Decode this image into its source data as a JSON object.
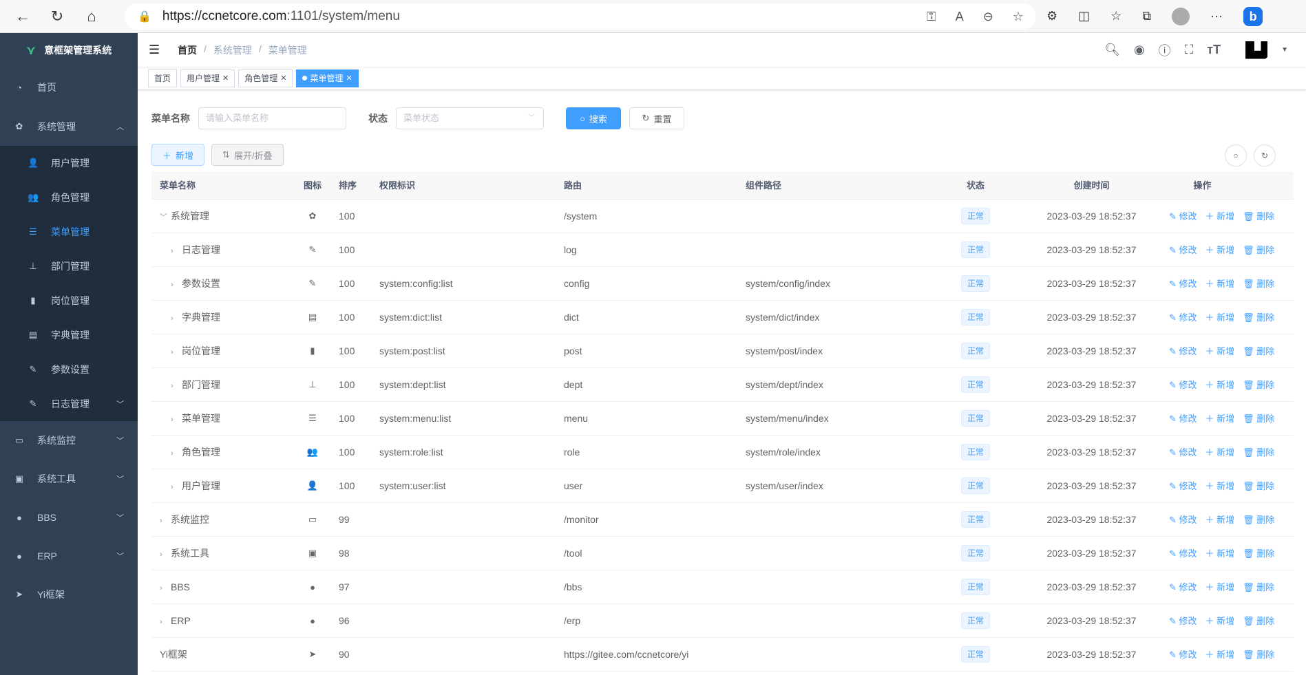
{
  "browser": {
    "url_host": "https://ccnetcore.com",
    "url_path": ":1101/system/menu",
    "back": "←",
    "reload": "↻",
    "home": "⌂"
  },
  "sidebar": {
    "title": "意框架管理系统",
    "items": [
      {
        "label": "首页",
        "icon": "dashboard-icon",
        "glyph": "◔"
      },
      {
        "label": "系统管理",
        "icon": "gear-icon",
        "glyph": "✿",
        "expanded": true
      },
      {
        "label": "系统监控",
        "icon": "monitor-icon",
        "glyph": "▭"
      },
      {
        "label": "系统工具",
        "icon": "toolbox-icon",
        "glyph": "▣"
      },
      {
        "label": "BBS",
        "icon": "globe-icon",
        "glyph": "●"
      },
      {
        "label": "ERP",
        "icon": "globe-icon",
        "glyph": "●"
      },
      {
        "label": "Yi框架",
        "icon": "send-icon",
        "glyph": "➤"
      }
    ],
    "sub_items": [
      {
        "label": "用户管理",
        "icon": "user-icon",
        "glyph": "👤"
      },
      {
        "label": "角色管理",
        "icon": "peoples-icon",
        "glyph": "👥"
      },
      {
        "label": "菜单管理",
        "icon": "tree-table-icon",
        "glyph": "☰",
        "active": true
      },
      {
        "label": "部门管理",
        "icon": "tree-icon",
        "glyph": "⊥"
      },
      {
        "label": "岗位管理",
        "icon": "post-icon",
        "glyph": "▮"
      },
      {
        "label": "字典管理",
        "icon": "dict-icon",
        "glyph": "▤"
      },
      {
        "label": "参数设置",
        "icon": "edit-icon",
        "glyph": "✎"
      },
      {
        "label": "日志管理",
        "icon": "log-icon",
        "glyph": "✎"
      }
    ]
  },
  "breadcrumb": {
    "home": "首页",
    "parent": "系统管理",
    "current": "菜单管理"
  },
  "tags": [
    {
      "label": "首页"
    },
    {
      "label": "用户管理"
    },
    {
      "label": "角色管理"
    },
    {
      "label": "菜单管理",
      "active": true
    }
  ],
  "search": {
    "name_label": "菜单名称",
    "name_placeholder": "请输入菜单名称",
    "status_label": "状态",
    "status_placeholder": "菜单状态",
    "search_btn": "搜索",
    "reset_btn": "重置"
  },
  "toolbar": {
    "add": "新增",
    "toggle": "展开/折叠"
  },
  "table": {
    "headers": [
      "菜单名称",
      "图标",
      "排序",
      "权限标识",
      "路由",
      "组件路径",
      "状态",
      "创建时间",
      "操作"
    ],
    "actions": {
      "edit": "修改",
      "add": "新增",
      "delete": "删除"
    },
    "rows": [
      {
        "name": "系统管理",
        "level": 0,
        "expander": "open",
        "icon": "✿",
        "sort": "100",
        "perms": "",
        "route": "/system",
        "component": "",
        "status": "正常",
        "time": "2023-03-29 18:52:37"
      },
      {
        "name": "日志管理",
        "level": 1,
        "expander": "closed",
        "icon": "✎",
        "sort": "100",
        "perms": "",
        "route": "log",
        "component": "",
        "status": "正常",
        "time": "2023-03-29 18:52:37"
      },
      {
        "name": "参数设置",
        "level": 1,
        "expander": "closed",
        "icon": "✎",
        "sort": "100",
        "perms": "system:config:list",
        "route": "config",
        "component": "system/config/index",
        "status": "正常",
        "time": "2023-03-29 18:52:37"
      },
      {
        "name": "字典管理",
        "level": 1,
        "expander": "closed",
        "icon": "▤",
        "sort": "100",
        "perms": "system:dict:list",
        "route": "dict",
        "component": "system/dict/index",
        "status": "正常",
        "time": "2023-03-29 18:52:37"
      },
      {
        "name": "岗位管理",
        "level": 1,
        "expander": "closed",
        "icon": "▮",
        "sort": "100",
        "perms": "system:post:list",
        "route": "post",
        "component": "system/post/index",
        "status": "正常",
        "time": "2023-03-29 18:52:37"
      },
      {
        "name": "部门管理",
        "level": 1,
        "expander": "closed",
        "icon": "⊥",
        "sort": "100",
        "perms": "system:dept:list",
        "route": "dept",
        "component": "system/dept/index",
        "status": "正常",
        "time": "2023-03-29 18:52:37"
      },
      {
        "name": "菜单管理",
        "level": 1,
        "expander": "closed",
        "icon": "☰",
        "sort": "100",
        "perms": "system:menu:list",
        "route": "menu",
        "component": "system/menu/index",
        "status": "正常",
        "time": "2023-03-29 18:52:37"
      },
      {
        "name": "角色管理",
        "level": 1,
        "expander": "closed",
        "icon": "👥",
        "sort": "100",
        "perms": "system:role:list",
        "route": "role",
        "component": "system/role/index",
        "status": "正常",
        "time": "2023-03-29 18:52:37"
      },
      {
        "name": "用户管理",
        "level": 1,
        "expander": "closed",
        "icon": "👤",
        "sort": "100",
        "perms": "system:user:list",
        "route": "user",
        "component": "system/user/index",
        "status": "正常",
        "time": "2023-03-29 18:52:37"
      },
      {
        "name": "系统监控",
        "level": 0,
        "expander": "closed",
        "icon": "▭",
        "sort": "99",
        "perms": "",
        "route": "/monitor",
        "component": "",
        "status": "正常",
        "time": "2023-03-29 18:52:37"
      },
      {
        "name": "系统工具",
        "level": 0,
        "expander": "closed",
        "icon": "▣",
        "sort": "98",
        "perms": "",
        "route": "/tool",
        "component": "",
        "status": "正常",
        "time": "2023-03-29 18:52:37"
      },
      {
        "name": "BBS",
        "level": 0,
        "expander": "closed",
        "icon": "●",
        "sort": "97",
        "perms": "",
        "route": "/bbs",
        "component": "",
        "status": "正常",
        "time": "2023-03-29 18:52:37"
      },
      {
        "name": "ERP",
        "level": 0,
        "expander": "closed",
        "icon": "●",
        "sort": "96",
        "perms": "",
        "route": "/erp",
        "component": "",
        "status": "正常",
        "time": "2023-03-29 18:52:37"
      },
      {
        "name": "Yi框架",
        "level": 0,
        "expander": "none",
        "icon": "➤",
        "sort": "90",
        "perms": "",
        "route": "https://gitee.com/ccnetcore/yi",
        "component": "",
        "status": "正常",
        "time": "2023-03-29 18:52:37"
      }
    ]
  },
  "colors": {
    "sidebar": "#304156",
    "submenu": "#1f2d3d",
    "accent": "#409eff"
  }
}
